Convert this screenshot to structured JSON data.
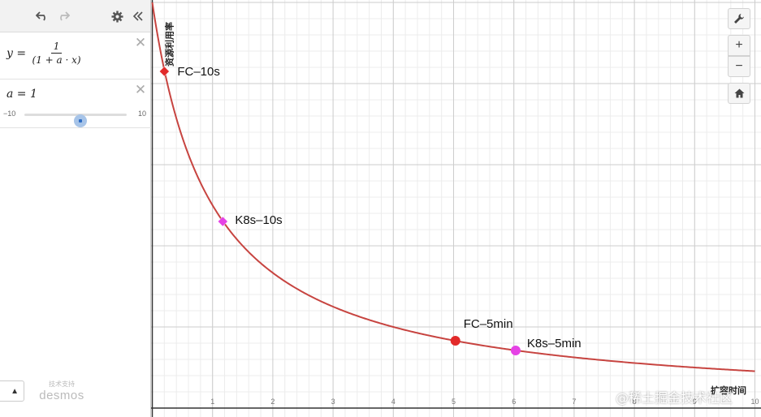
{
  "toolbar": {
    "undo_icon": "undo-icon",
    "redo_icon": "redo-icon",
    "settings_icon": "gear-icon",
    "collapse_icon": "double-chevron-left-icon"
  },
  "expressions": [
    {
      "lhs": "y =",
      "numerator": "1",
      "denominator": "(1 + a · x)"
    },
    {
      "text": "a = 1",
      "slider": {
        "min_label": "−10",
        "max_label": "10",
        "min": -10,
        "max": 10,
        "value": 1
      }
    }
  ],
  "keyboard_toggle": {
    "label": "▲"
  },
  "powered_by": {
    "caption": "技术支持",
    "logo": "desmos"
  },
  "graph_controls": {
    "settings_icon": "wrench-icon",
    "zoom_in": "+",
    "zoom_out": "−",
    "home_icon": "home-icon"
  },
  "watermark": "@稀土掘金技术社区",
  "chart_data": {
    "type": "line",
    "function": "y = 1 / (1 + a·x), a = 1",
    "xlabel": "扩容时间",
    "ylabel": "资源利用率",
    "xlim": [
      0,
      10
    ],
    "ylim": [
      0,
      1
    ],
    "grid": true,
    "x_ticks": [
      "1",
      "2",
      "3",
      "4",
      "5",
      "6",
      "7",
      "8",
      "9",
      "10"
    ],
    "y_ticks": [
      "0.2",
      "0.4",
      "0.6",
      "0.8",
      "1"
    ],
    "curve_color": "#c74440",
    "points": [
      {
        "label": "FC–10s",
        "x": 0.2,
        "y": 0.83,
        "shape": "diamond",
        "color": "#e22a2a"
      },
      {
        "label": "K8s–10s",
        "x": 1.17,
        "y": 0.46,
        "shape": "diamond",
        "color": "#e542e5"
      },
      {
        "label": "FC–5min",
        "x": 5.03,
        "y": 0.166,
        "shape": "circle",
        "color": "#e22a2a"
      },
      {
        "label": "K8s–5min",
        "x": 6.03,
        "y": 0.142,
        "shape": "circle",
        "color": "#e542e5"
      }
    ]
  }
}
